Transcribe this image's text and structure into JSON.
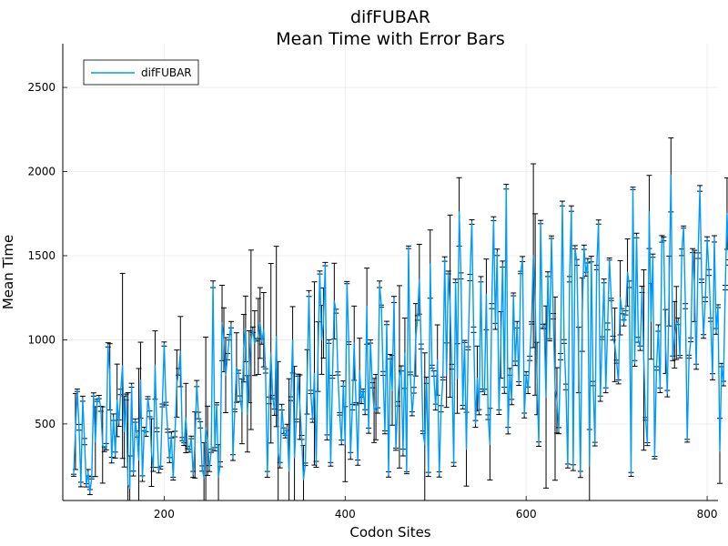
{
  "chart_data": {
    "type": "line",
    "title": "difFUBAR",
    "subtitle": "Mean Time with Error Bars",
    "xlabel": "Codon Sites",
    "ylabel": "Mean Time",
    "xlim": [
      88,
      812
    ],
    "ylim": [
      45,
      2760
    ],
    "x_ticks": [
      200,
      400,
      600,
      800
    ],
    "y_ticks": [
      500,
      1000,
      1500,
      2000,
      2500
    ],
    "grid": true,
    "legend_position": "top-left",
    "colors": {
      "line": "#009AFA",
      "error_bar": "#000000",
      "axis": "#000000",
      "grid": "#EBEBEB"
    },
    "series": [
      {
        "name": "difFUBAR",
        "x_start": 100,
        "x_step": 2,
        "y": [
          195,
          455,
          700,
          480,
          140,
          650,
          395,
          135,
          210,
          95,
          180,
          675,
          395,
          640,
          660,
          590,
          375,
          350,
          365,
          970,
          780,
          285,
          540,
          315,
          640,
          505,
          690,
          845,
          455,
          660,
          140,
          120,
          730,
          205,
          520,
          440,
          285,
          760,
          175,
          470,
          440,
          655,
          560,
          330,
          230,
          850,
          465,
          225,
          240,
          610,
          975,
          620,
          460,
          285,
          435,
          175,
          440,
          740,
          810,
          930,
          410,
          380,
          535,
          360,
          340,
          420,
          200,
          375,
          740,
          550,
          495,
          235,
          180,
          475,
          400,
          235,
          340,
          1330,
          350,
          620,
          185,
          260,
          1100,
          1000,
          790,
          900,
          1015,
          1090,
          300,
          580,
          835,
          810,
          650,
          575,
          950,
          1065,
          560,
          840,
          1000,
          1060,
          980,
          1000,
          1020,
          1100,
          990,
          1060,
          815,
          200,
          640,
          920,
          660,
          570,
          1020,
          330,
          255,
          600,
          460,
          425,
          480,
          220,
          650,
          1000,
          300,
          520,
          790,
          600,
          420,
          170,
          260,
          750,
          1275,
          690,
          520,
          800,
          260,
          900,
          1400,
          1000,
          1100,
          1450,
          420,
          990,
          260,
          780,
          1230,
          1170,
          800,
          560,
          390,
          740,
          380,
          1340,
          980,
          310,
          600,
          980,
          620,
          270,
          815,
          640,
          700,
          570,
          1200,
          460,
          990,
          730,
          580,
          600,
          580,
          1330,
          1200,
          800,
          450,
          1100,
          200,
          900,
          700,
          1240,
          350,
          620,
          780,
          830,
          330,
          920,
          210,
          1550,
          800,
          560,
          700,
          1000,
          1130,
          1360,
          960,
          450,
          380,
          760,
          200,
          1450,
          840,
          800,
          600,
          880,
          200,
          590,
          770,
          1480,
          790,
          1400,
          1200,
          840,
          260,
          1350,
          770,
          1760,
          1380,
          600,
          990,
          350,
          950,
          1370,
          1700,
          1060,
          500,
          770,
          570,
          1360,
          700,
          690,
          1270,
          540,
          380,
          1200,
          1720,
          1080,
          1520,
          570,
          970,
          1450,
          700,
          1910,
          460,
          810,
          630,
          1270,
          860,
          1090,
          740,
          1400,
          1480,
          550,
          800,
          700,
          890,
          1100,
          1500,
          1210,
          770,
          380,
          1700,
          1080,
          1080,
          660,
          1390,
          1000,
          1610,
          1140,
          710,
          640,
          460,
          900,
          1810,
          990,
          720,
          250,
          1360,
          1780,
          240,
          1550,
          1460,
          880,
          200,
          1150,
          1550,
          1390,
          1470,
          250,
          1480,
          740,
          380,
          1430,
          1700,
          650,
          1010,
          1350,
          700,
          1080,
          1480,
          1240,
          1010,
          970,
          870,
          750,
          1250,
          1170,
          1100,
          1160,
          1400,
          1330,
          200,
          1900,
          860,
          1620,
          1000,
          950,
          1300,
          880,
          530,
          380,
          1760,
          1110,
          1500,
          300,
          830,
          1070,
          700,
          1600,
          1600,
          990,
          680,
          1290,
          1980,
          890,
          1030,
          1100,
          1110,
          900,
          1520,
          1670,
          1200,
          400,
          900,
          1000,
          1530,
          1320,
          840,
          1500,
          1900,
          1350,
          1020,
          1240,
          1600,
          1400,
          1120,
          780,
          1600,
          1050,
          1200,
          340,
          850,
          740,
          1310,
          1750,
          1460,
          650,
          280,
          600,
          1720,
          970,
          1580,
          620,
          980,
          1370,
          1160,
          1070,
          1770,
          860,
          200,
          1610,
          1210,
          1450,
          1920,
          1950,
          1360,
          1760,
          1500,
          700,
          430,
          2070,
          1930,
          1000,
          710,
          1300,
          1480,
          1140,
          600,
          1940,
          1200,
          780,
          1200,
          1920,
          1170,
          1740,
          1440,
          270,
          1790,
          1560,
          850,
          2230,
          860,
          680,
          1320,
          1090,
          700,
          1230,
          1540,
          1690,
          1080,
          1680,
          1290,
          940,
          2280,
          1690,
          640,
          1670,
          1000,
          1500,
          820,
          640,
          1060,
          1360,
          1690,
          740,
          1050,
          920,
          1320,
          640,
          1700,
          1390,
          720,
          900,
          800,
          1400,
          1200,
          1000,
          1180,
          700,
          1500,
          1790,
          1740,
          1730,
          900,
          400,
          1600,
          1200,
          930,
          700,
          1900,
          1300,
          710,
          1200,
          1700,
          1000,
          720,
          1170,
          810,
          600,
          1390,
          560,
          1210,
          1040,
          980,
          2560,
          1430,
          1690,
          2330,
          1420,
          1770,
          830,
          1810,
          1600,
          1300,
          730,
          1810,
          1560,
          1010,
          1280,
          1170,
          1990,
          1410,
          2000,
          1160,
          1040,
          1510,
          1140,
          1050,
          1560,
          850,
          560,
          1100,
          1750,
          590,
          940,
          780,
          990,
          660,
          1500,
          1200,
          1560,
          980,
          1430,
          620,
          770,
          1000,
          860,
          1690,
          1120,
          1310,
          1260,
          1100,
          1690,
          1430,
          1680,
          2640,
          1490,
          1250,
          1410,
          1460,
          2100,
          1140,
          1000,
          1560,
          1450,
          1010,
          1030,
          840,
          1070,
          740,
          1580,
          1700,
          1220,
          1420,
          1570,
          1410,
          1200,
          1120,
          1510,
          1560,
          1060,
          1170,
          880,
          1060,
          1040,
          700
        ]
      }
    ]
  }
}
